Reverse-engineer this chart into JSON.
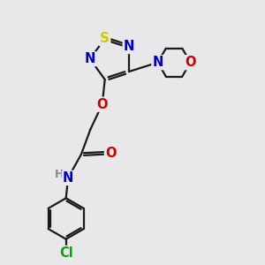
{
  "bg_color": "#e8e8eb",
  "bond_color": "#1a1a1a",
  "bond_width": 1.6,
  "atom_colors": {
    "S": "#cccc00",
    "N": "#0000cc",
    "O": "#cc0000",
    "Cl": "#00aa00",
    "H": "#888888",
    "C": "#1a1a1a"
  },
  "font_size": 10.5
}
